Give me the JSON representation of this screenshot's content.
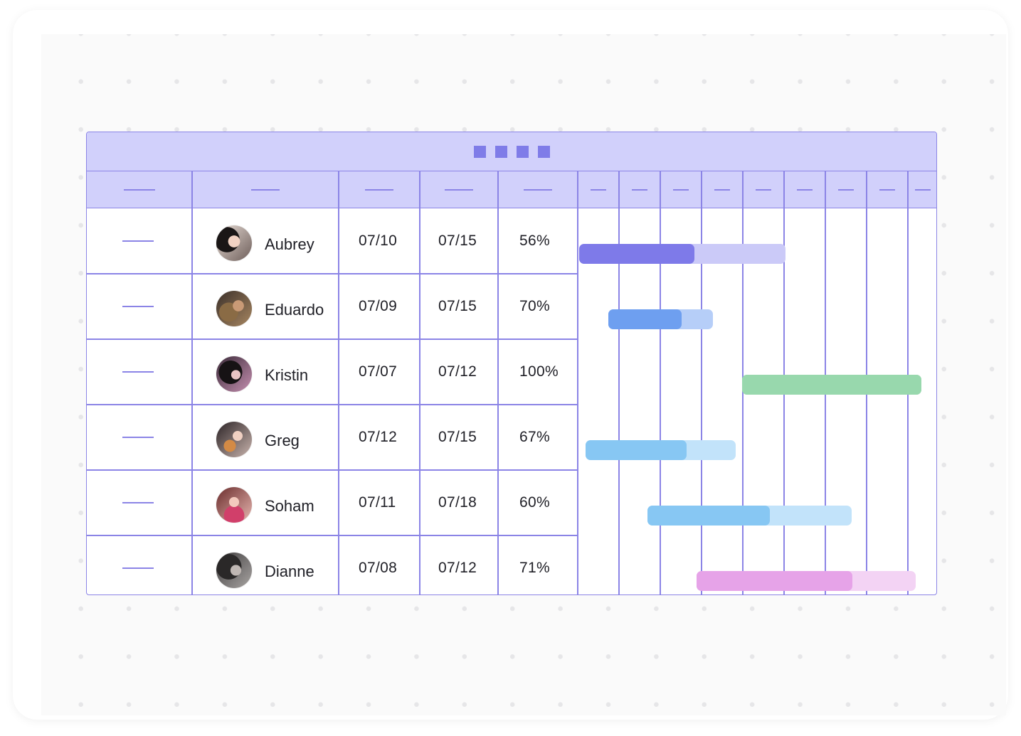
{
  "title_dots": 4,
  "rows": [
    {
      "name": "Aubrey",
      "start": "07/10",
      "end": "07/15",
      "progress_label": "56%",
      "progress": 0.56,
      "bar_start": 0.0,
      "bar_span": 5,
      "color": "#7e7ae9",
      "light": "#cbcaf8"
    },
    {
      "name": "Eduardo",
      "start": "07/09",
      "end": "07/15",
      "progress_label": "70%",
      "progress": 0.7,
      "bar_start": 0.7,
      "bar_span": 2.55,
      "color": "#6e9ff0",
      "light": "#b6cef8"
    },
    {
      "name": "Kristin",
      "start": "07/07",
      "end": "07/12",
      "progress_label": "100%",
      "progress": 1.0,
      "bar_start": 3.95,
      "bar_span": 4.35,
      "color": "#98d8ad",
      "light": "#98d8ad"
    },
    {
      "name": "Greg",
      "start": "07/12",
      "end": "07/15",
      "progress_label": "67%",
      "progress": 0.67,
      "bar_start": 0.15,
      "bar_span": 3.65,
      "color": "#87c7f3",
      "light": "#c2e3fa"
    },
    {
      "name": "Soham",
      "start": "07/11",
      "end": "07/18",
      "progress_label": "60%",
      "progress": 0.6,
      "bar_start": 1.65,
      "bar_span": 4.95,
      "color": "#87c7f3",
      "light": "#c2e3fa"
    },
    {
      "name": "Dianne",
      "start": "07/08",
      "end": "07/12",
      "progress_label": "71%",
      "progress": 0.71,
      "bar_start": 2.85,
      "bar_span": 5.3,
      "color": "#e6a3e8",
      "light": "#f3d3f4"
    }
  ]
}
